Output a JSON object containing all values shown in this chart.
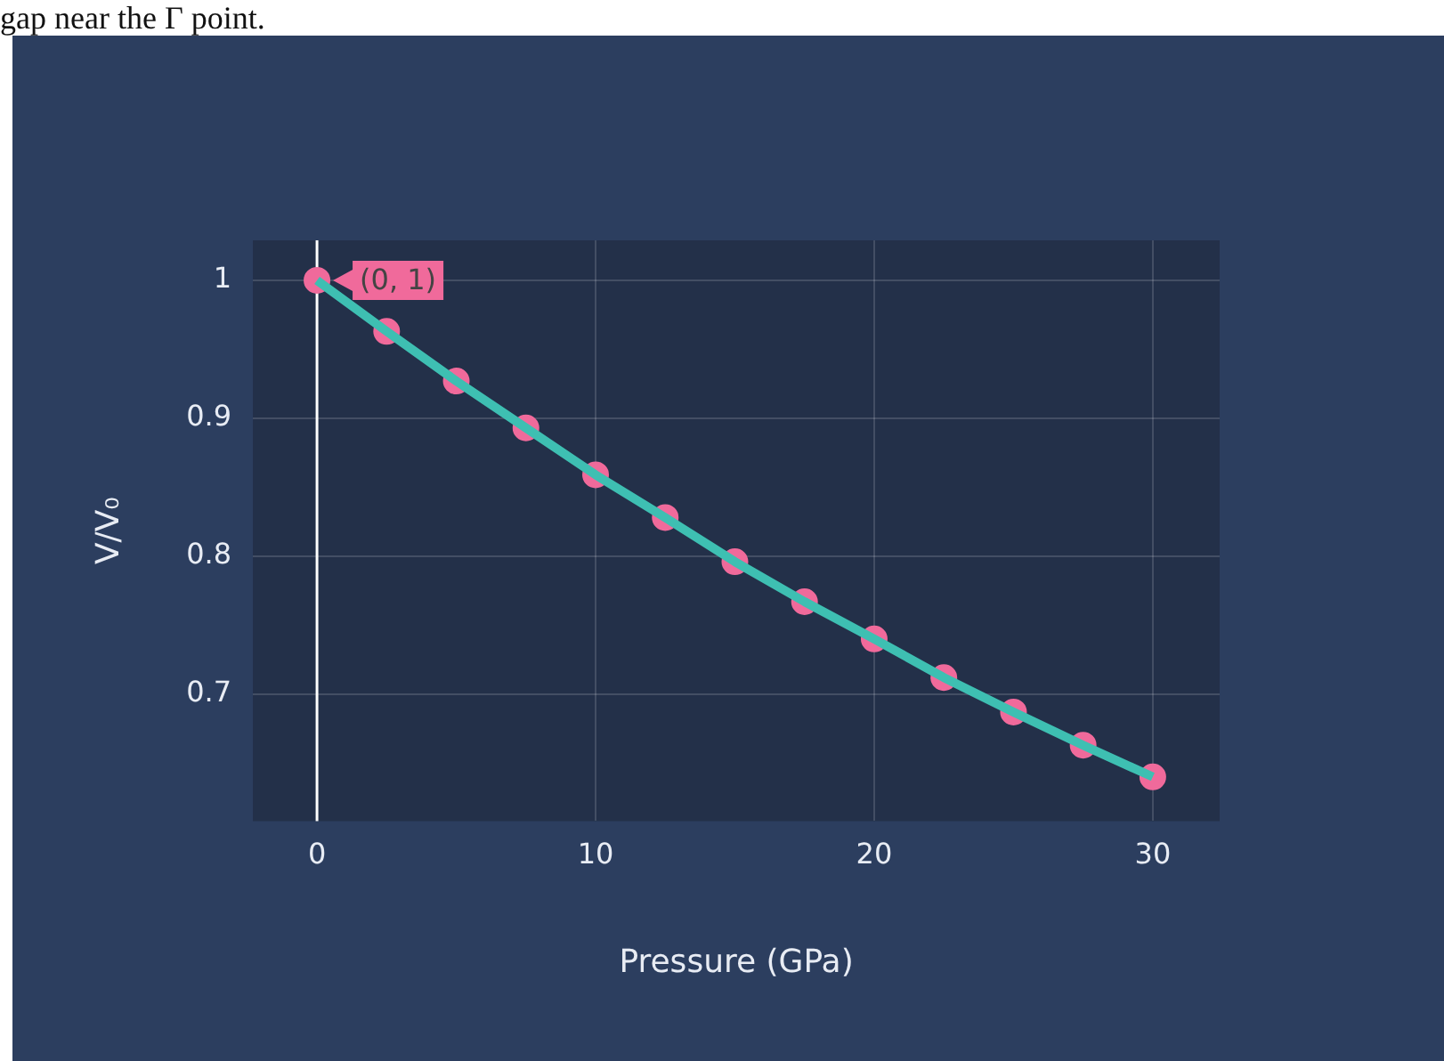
{
  "chart_data": {
    "type": "line",
    "xlabel": "Pressure (GPa)",
    "ylabel": "V/V₀",
    "x": [
      0,
      2.5,
      5,
      7.5,
      10,
      12.5,
      15,
      17.5,
      20,
      22.5,
      25,
      27.5,
      30
    ],
    "series": [
      {
        "type": "line",
        "color": "#3ebfb2",
        "marker": "none",
        "values": [
          1,
          0.963,
          0.927,
          0.893,
          0.859,
          0.828,
          0.796,
          0.767,
          0.74,
          0.712,
          0.687,
          0.663,
          0.64
        ]
      },
      {
        "type": "scatter",
        "color": "#f06a9b",
        "marker": "circle",
        "values": [
          1,
          0.963,
          0.927,
          0.893,
          0.859,
          0.828,
          0.796,
          0.767,
          0.74,
          0.712,
          0.687,
          0.663,
          0.64
        ]
      }
    ],
    "xlim": [
      -2.3,
      32.4
    ],
    "xticks": [
      0,
      10,
      20,
      30
    ],
    "ylim": [
      0.608,
      1.029
    ],
    "yticks": [
      {
        "value": 0.7,
        "label": "0.7"
      },
      {
        "value": 0.8,
        "label": "0.8"
      },
      {
        "value": 0.9,
        "label": "0.9"
      },
      {
        "value": 1,
        "label": "1"
      }
    ],
    "grid": true,
    "legend": false,
    "ref_lines": [
      {
        "axis": "x",
        "value": 0,
        "color": "#ffffff"
      }
    ],
    "annotations": [
      {
        "text": "(0, 1)",
        "x": 0,
        "y": 1
      },
      "gap near the Γ point."
    ]
  }
}
